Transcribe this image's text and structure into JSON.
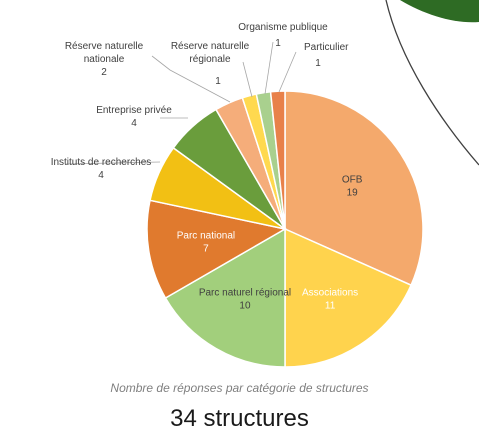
{
  "chart_data": {
    "type": "pie",
    "title": "",
    "caption": "Nombre de réponses par catégorie de structures",
    "total": {
      "number": "34",
      "label": "structures"
    },
    "slices": [
      {
        "label": "OFB",
        "value": 19,
        "color": "#f4a96c"
      },
      {
        "label": "Associations",
        "value": 11,
        "color": "#ffd34d"
      },
      {
        "label": "Parc naturel régional",
        "value": 10,
        "color": "#a2cf7c"
      },
      {
        "label": "Parc national",
        "value": 7,
        "color": "#e07a2e"
      },
      {
        "label": "Instituts de recherches",
        "value": 4,
        "color": "#f2c014"
      },
      {
        "label": "Entreprise privée",
        "value": 4,
        "color": "#6a9d3c"
      },
      {
        "label": "Réserve naturelle nationale",
        "value": 2,
        "color": "#f5ad7a"
      },
      {
        "label": "Réserve naturelle régionale",
        "value": 1,
        "color": "#ffd94f"
      },
      {
        "label": "Organisme publique",
        "value": 1,
        "color": "#a9d08e"
      },
      {
        "label": "Particulier",
        "value": 1,
        "color": "#e8814a"
      }
    ]
  }
}
